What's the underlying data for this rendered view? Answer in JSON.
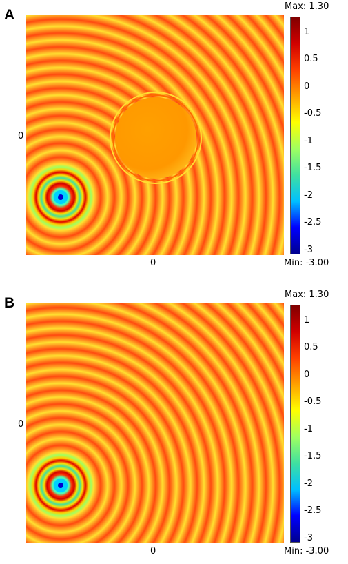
{
  "colors": {
    "colormap": [
      "#00008f",
      "#0000ff",
      "#00c0ff",
      "#40e0a0",
      "#a0ff60",
      "#ffff00",
      "#ffa000",
      "#ff4000",
      "#d00000",
      "#800000"
    ],
    "background": "#ffffff"
  },
  "panels": [
    {
      "letter": "A",
      "x_tick": "0",
      "y_tick": "0",
      "max_label": "Max: 1.30",
      "min_label": "Min: -3.00",
      "has_scatterer": true
    },
    {
      "letter": "B",
      "x_tick": "0",
      "y_tick": "0",
      "max_label": "Max: 1.30",
      "min_label": "Min: -3.00",
      "has_scatterer": false
    }
  ],
  "colorbar_ticks": [
    "1",
    "0.5",
    "0",
    "-0.5",
    "-1",
    "-1.5",
    "-2",
    "-2.5",
    "-3"
  ],
  "colorbar_range": [
    -3.0,
    1.3
  ]
}
